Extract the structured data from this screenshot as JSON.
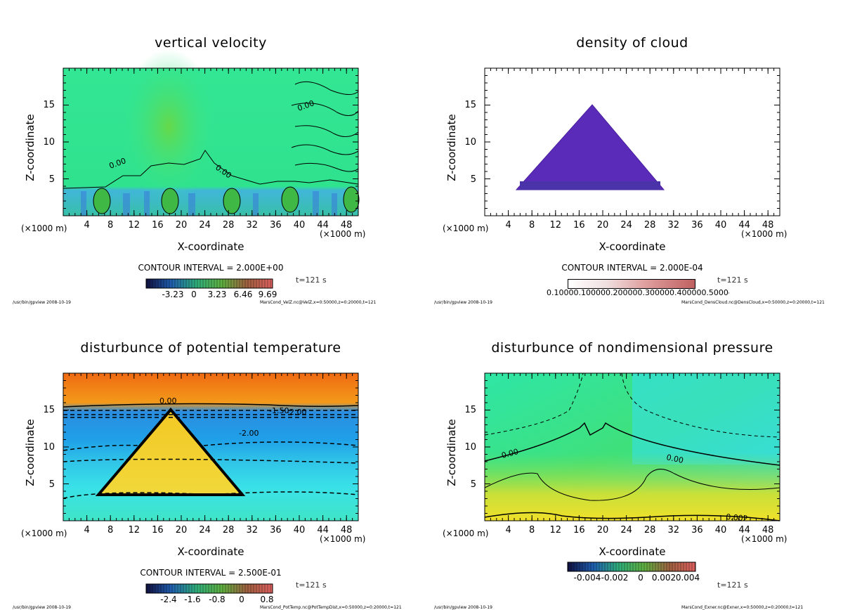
{
  "chart_data": [
    {
      "type": "heatmap",
      "title": "vertical velocity",
      "xlabel": "X-coordinate",
      "ylabel": "Z-coordinate",
      "x_unit_left": "(×1000 m)",
      "x_unit_right": "(×1000 m)",
      "xticks": [
        "4",
        "8",
        "12",
        "16",
        "20",
        "24",
        "28",
        "32",
        "36",
        "40",
        "44",
        "48"
      ],
      "yticks": [
        "5",
        "10",
        "15"
      ],
      "xlim": [
        0,
        50
      ],
      "ylim": [
        0,
        20
      ],
      "contour_interval": "CONTOUR INTERVAL = 2.000E+00",
      "time": "t=121 s",
      "colorbar_ticks": [
        "-3.23",
        "0",
        "3.23",
        "6.46",
        "9.69"
      ],
      "contour_labels": [
        "0.00",
        "0.00",
        "0.00"
      ],
      "footer_left": "/usr/bin/gpview  2008-10-19",
      "footer_right": "MarsCond_VelZ.nc@VelZ,x=0:50000,z=0:20000,t=121"
    },
    {
      "type": "heatmap",
      "title": "density of cloud",
      "xlabel": "X-coordinate",
      "ylabel": "Z-coordinate",
      "x_unit_left": "(×1000 m)",
      "x_unit_right": "(×1000 m)",
      "xticks": [
        "4",
        "8",
        "12",
        "16",
        "20",
        "24",
        "28",
        "32",
        "36",
        "40",
        "44",
        "48"
      ],
      "yticks": [
        "5",
        "10",
        "15"
      ],
      "xlim": [
        0,
        50
      ],
      "ylim": [
        0,
        20
      ],
      "contour_interval": "CONTOUR INTERVAL = 2.000E-04",
      "time": "t=121 s",
      "colorbar_ticks_text": "0.10000.100000.200000.300000.400000.5000e-03",
      "footer_left": "/usr/bin/gpview  2008-10-19",
      "footer_right": "MarsCond_DensCloud.nc@DensCloud,x=0:50000,z=0:20000,t=121"
    },
    {
      "type": "heatmap",
      "title": "disturbunce of potential temperature",
      "xlabel": "X-coordinate",
      "ylabel": "Z-coordinate",
      "x_unit_left": "(×1000 m)",
      "x_unit_right": "(×1000 m)",
      "xticks": [
        "4",
        "8",
        "12",
        "16",
        "20",
        "24",
        "28",
        "32",
        "36",
        "40",
        "44",
        "48"
      ],
      "yticks": [
        "5",
        "10",
        "15"
      ],
      "xlim": [
        0,
        50
      ],
      "ylim": [
        0,
        20
      ],
      "contour_interval": "CONTOUR INTERVAL = 2.500E-01",
      "time": "t=121 s",
      "colorbar_ticks": [
        "-2.4",
        "-1.6",
        "-0.8",
        "0",
        "0.8"
      ],
      "contour_labels": [
        "0.00",
        "-1.50",
        "-2.00",
        "-2.00"
      ],
      "footer_left": "/usr/bin/gpview  2008-10-19",
      "footer_right": "MarsCond_PotTemp.nc@PotTempDist,x=0:50000,z=0:20000,t=121"
    },
    {
      "type": "heatmap",
      "title": "disturbunce of nondimensional pressure",
      "xlabel": "X-coordinate",
      "ylabel": "Z-coordinate",
      "x_unit_left": "(×1000 m)",
      "x_unit_right": "(×1000 m)",
      "xticks": [
        "4",
        "8",
        "12",
        "16",
        "20",
        "24",
        "28",
        "32",
        "36",
        "40",
        "44",
        "48"
      ],
      "yticks": [
        "5",
        "10",
        "15"
      ],
      "xlim": [
        0,
        50
      ],
      "ylim": [
        0,
        20
      ],
      "time": "t=121 s",
      "colorbar_ticks": [
        "-0.004",
        "-0.002",
        "0",
        "0.002",
        "0.004"
      ],
      "contour_labels": [
        "0.00",
        "0.00",
        "0.002"
      ],
      "footer_left": "/usr/bin/gpview  2008-10-19",
      "footer_right": "MarsCond_Exner.nc@Exner,x=0:50000,z=0:20000,t=121"
    }
  ]
}
